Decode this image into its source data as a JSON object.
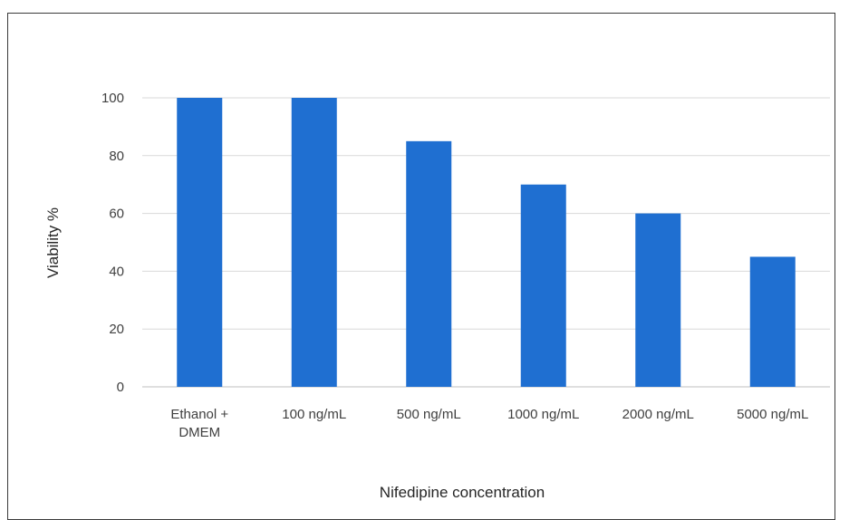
{
  "chart_data": {
    "type": "bar",
    "title": "",
    "xlabel": "Nifedipine concentration",
    "ylabel": "Viability %",
    "categories": [
      [
        "Ethanol +",
        "DMEM"
      ],
      [
        "100 ng/mL"
      ],
      [
        "500 ng/mL"
      ],
      [
        "1000 ng/mL"
      ],
      [
        "2000 ng/mL"
      ],
      [
        "5000 ng/mL"
      ]
    ],
    "values": [
      100,
      100,
      85,
      70,
      60,
      45
    ],
    "ylim": [
      0,
      100
    ],
    "yticks": [
      0,
      20,
      40,
      60,
      80,
      100
    ],
    "grid": true,
    "legend": "none",
    "colors": {
      "bar": "#1f6fd1",
      "grid": "#d9d9d9",
      "axis": "#bfbfbf"
    }
  }
}
